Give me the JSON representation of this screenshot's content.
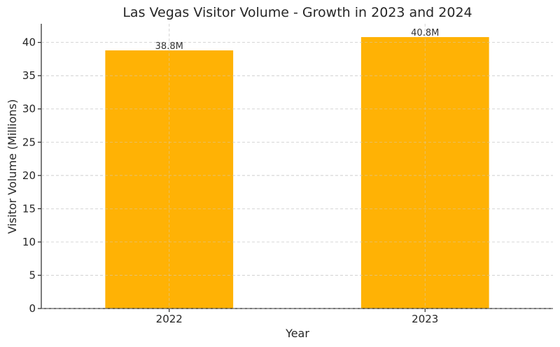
{
  "chart_data": {
    "type": "bar",
    "title": "Las Vegas Visitor Volume - Growth in 2023 and 2024",
    "xlabel": "Year",
    "ylabel": "Visitor Volume (Millions)",
    "categories": [
      "2022",
      "2023"
    ],
    "values": [
      38.8,
      40.8
    ],
    "data_labels": [
      "38.8M",
      "40.8M"
    ],
    "ylim": [
      0,
      42.8
    ],
    "yticks": [
      0,
      5,
      10,
      15,
      20,
      25,
      30,
      35,
      40
    ],
    "ytick_labels": [
      "0",
      "5",
      "10",
      "15",
      "20",
      "25",
      "30",
      "35",
      "40"
    ],
    "grid": true,
    "bar_color": "#FFB000",
    "legend": "none"
  }
}
